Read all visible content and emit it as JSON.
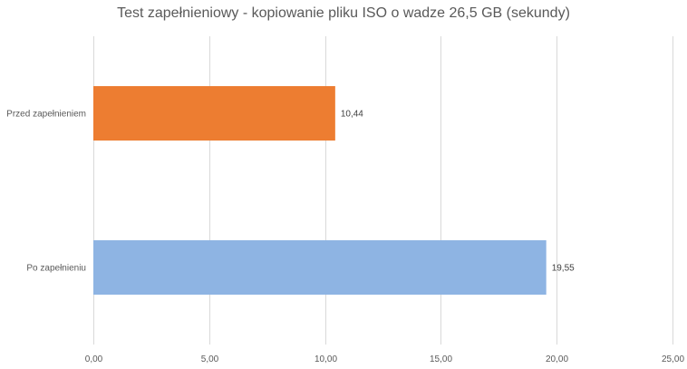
{
  "chart_data": {
    "type": "bar",
    "orientation": "horizontal",
    "title": "Test zapełnieniowy - kopiowanie pliku ISO o wadze 26,5 GB (sekundy)",
    "categories": [
      "Przed zapełnieniem",
      "Po zapełnieniu"
    ],
    "values": [
      10.44,
      19.55
    ],
    "value_labels": [
      "10,44",
      "19,55"
    ],
    "colors": [
      "#ed7d31",
      "#8eb4e3"
    ],
    "xlim": [
      0,
      25
    ],
    "x_ticks": [
      0,
      5,
      10,
      15,
      20,
      25
    ],
    "x_tick_labels": [
      "0,00",
      "5,00",
      "10,00",
      "15,00",
      "20,00",
      "25,00"
    ],
    "grid": true,
    "legend": "none"
  }
}
